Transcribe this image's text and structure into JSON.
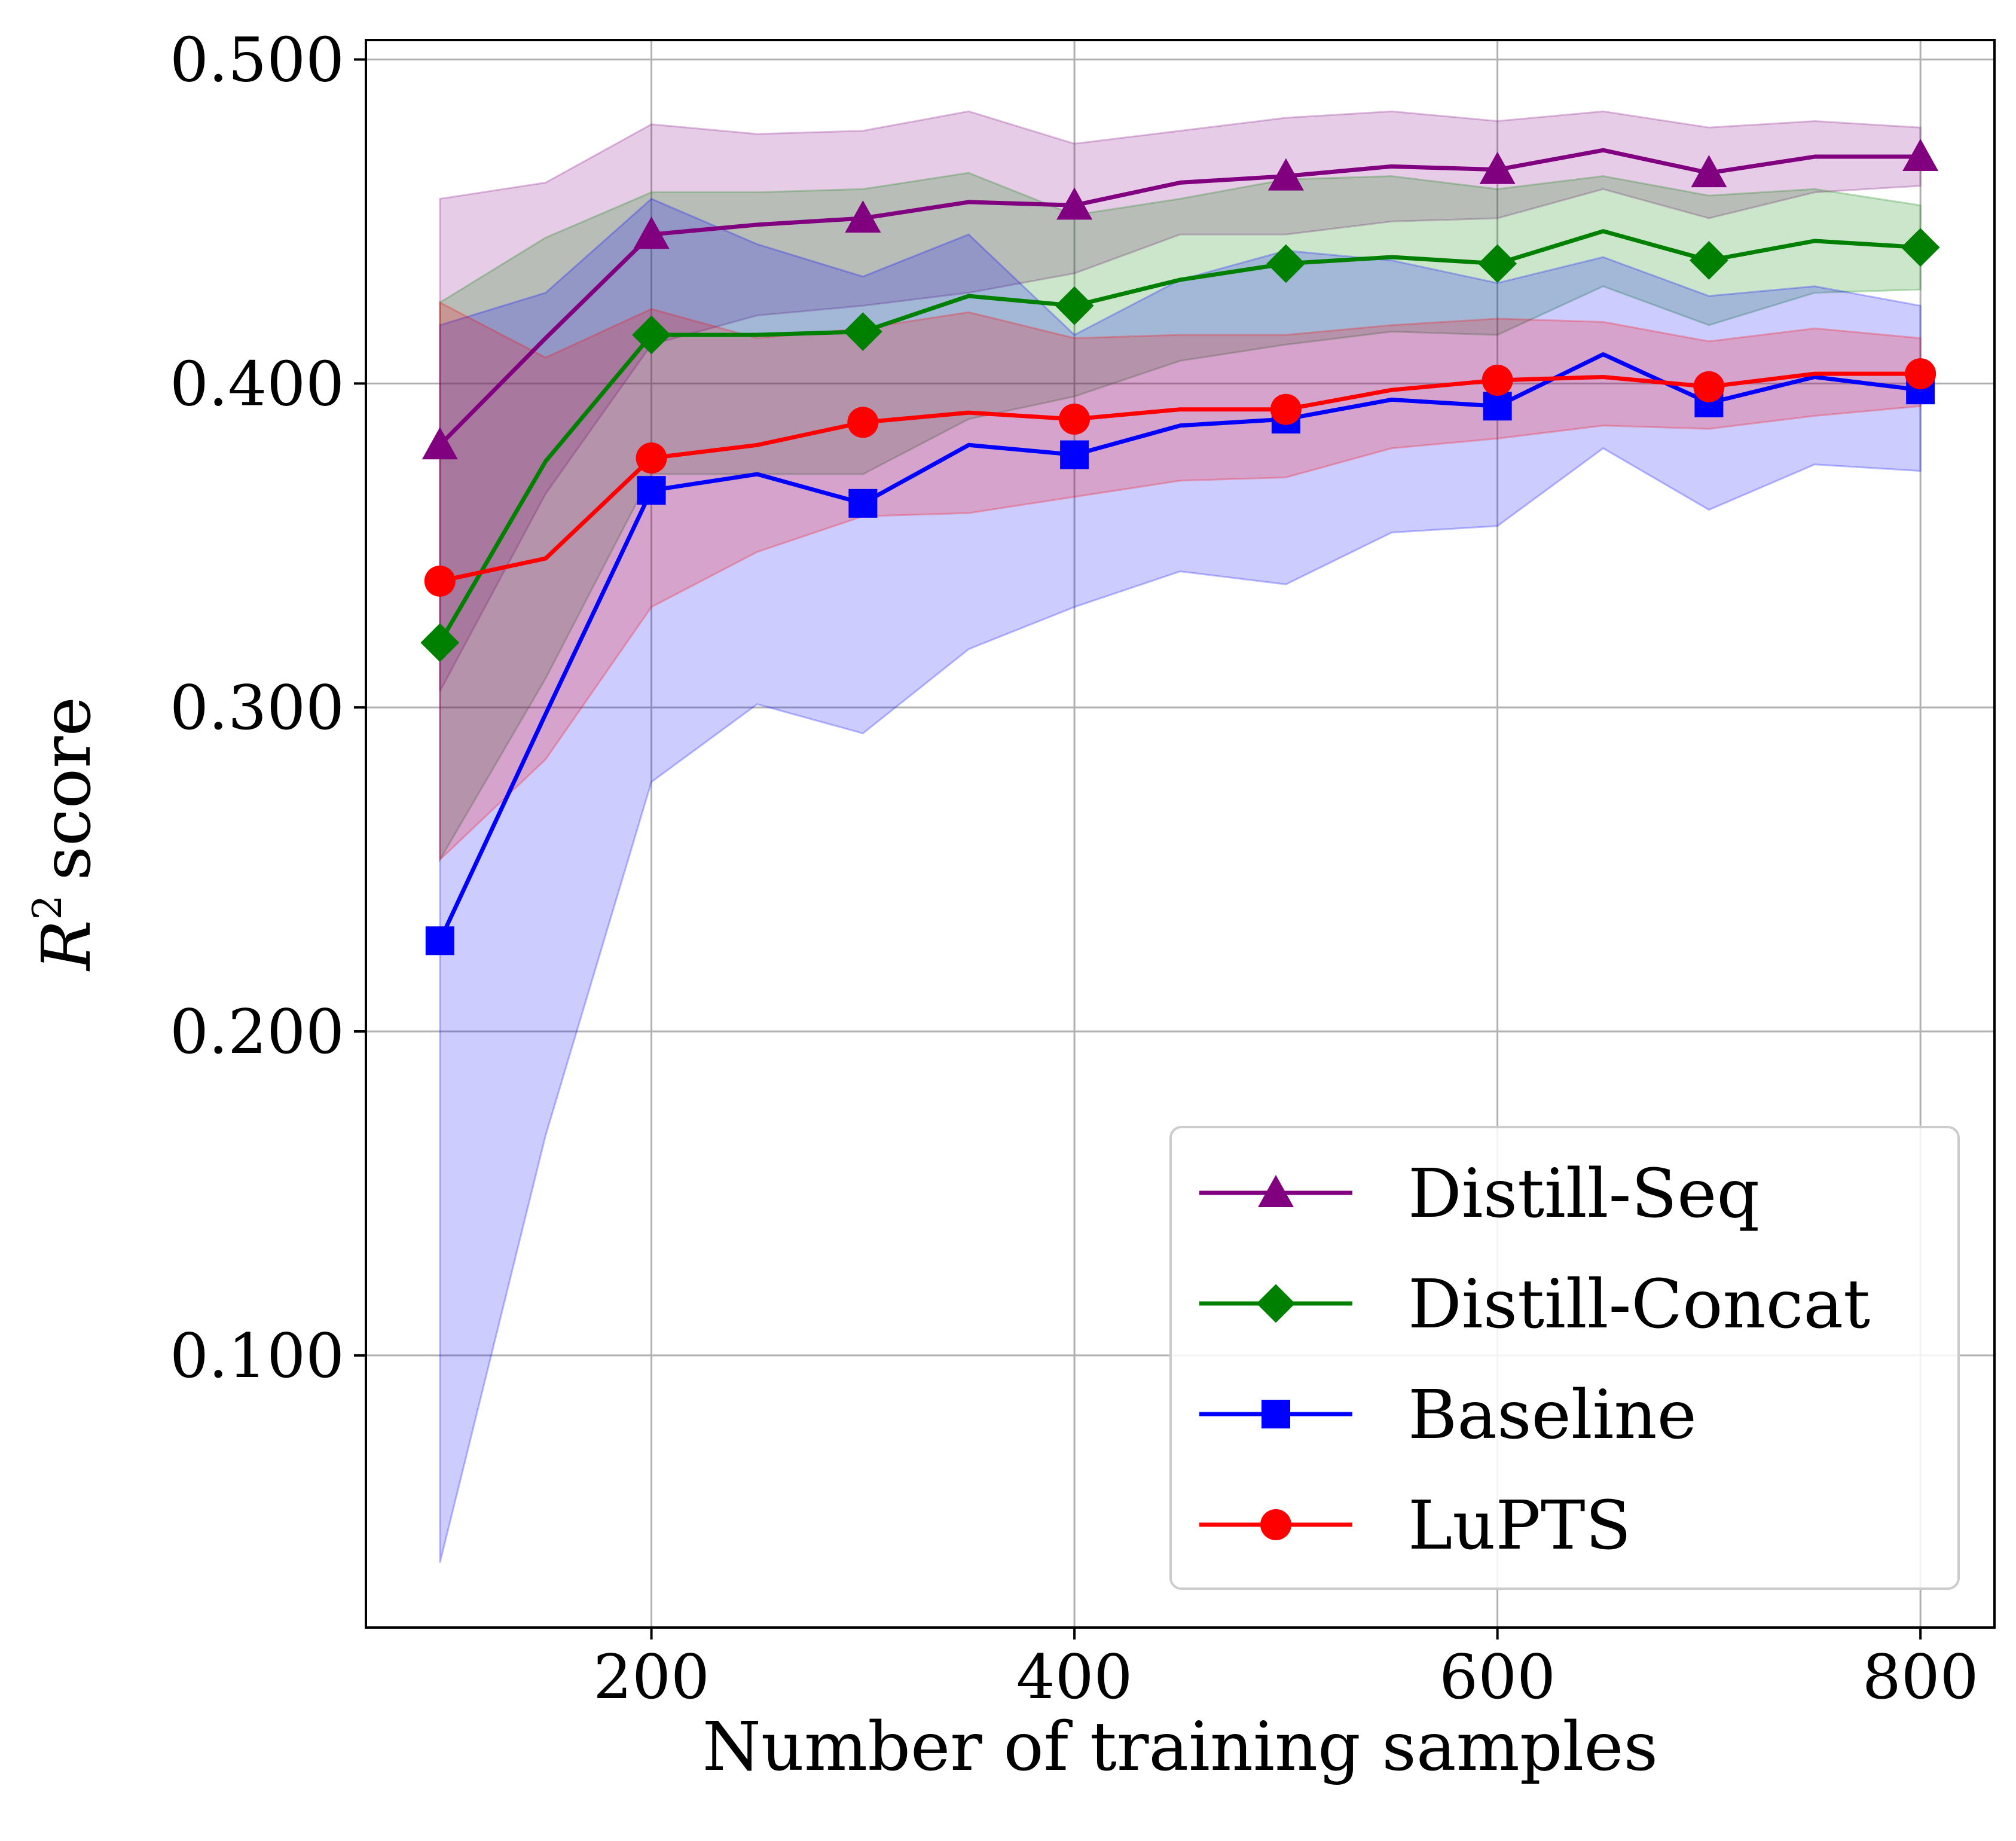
{
  "chart_data": {
    "type": "line",
    "title": "",
    "xlabel": "Number of training samples",
    "ylabel": "score",
    "ylabel_symbol": "R",
    "ylabel_exponent": "2",
    "x": [
      100,
      150,
      200,
      250,
      300,
      350,
      400,
      450,
      500,
      550,
      600,
      650,
      700,
      750,
      800
    ],
    "xlim": [
      65,
      835
    ],
    "ylim": [
      0.016,
      0.506
    ],
    "xticks": [
      200,
      400,
      600,
      800
    ],
    "xtick_labels": [
      "200",
      "400",
      "600",
      "800"
    ],
    "yticks": [
      0.1,
      0.2,
      0.3,
      0.4,
      0.5
    ],
    "ytick_labels": [
      "0.100",
      "0.200",
      "0.300",
      "0.400",
      "0.500"
    ],
    "grid": true,
    "legend_position": "bottom-right",
    "series": [
      {
        "name": "Distill-Seq",
        "color": "#800080",
        "marker": "triangle",
        "marker_every": 2,
        "values": [
          0.381,
          0.414,
          0.446,
          0.449,
          0.451,
          0.456,
          0.455,
          0.462,
          0.464,
          0.467,
          0.466,
          0.472,
          0.465,
          0.47,
          0.47
        ],
        "upper": [
          0.457,
          0.462,
          0.48,
          0.477,
          0.478,
          0.484,
          0.474,
          0.478,
          0.482,
          0.484,
          0.481,
          0.484,
          0.479,
          0.481,
          0.479
        ],
        "lower": [
          0.305,
          0.366,
          0.412,
          0.421,
          0.424,
          0.428,
          0.434,
          0.446,
          0.446,
          0.45,
          0.451,
          0.46,
          0.451,
          0.459,
          0.461
        ]
      },
      {
        "name": "Distill-Concat",
        "color": "#008000",
        "marker": "diamond",
        "marker_every": 2,
        "values": [
          0.32,
          0.376,
          0.415,
          0.415,
          0.416,
          0.427,
          0.424,
          0.432,
          0.437,
          0.439,
          0.437,
          0.447,
          0.438,
          0.444,
          0.442
        ],
        "upper": [
          0.425,
          0.445,
          0.459,
          0.459,
          0.46,
          0.465,
          0.452,
          0.457,
          0.463,
          0.464,
          0.46,
          0.464,
          0.458,
          0.46,
          0.455
        ],
        "lower": [
          0.253,
          0.309,
          0.372,
          0.372,
          0.372,
          0.389,
          0.396,
          0.407,
          0.412,
          0.416,
          0.415,
          0.43,
          0.418,
          0.428,
          0.429
        ]
      },
      {
        "name": "Baseline",
        "color": "#0000ff",
        "marker": "square",
        "marker_every": 2,
        "values": [
          0.228,
          0.298,
          0.367,
          0.372,
          0.363,
          0.381,
          0.378,
          0.387,
          0.389,
          0.395,
          0.393,
          0.409,
          0.394,
          0.402,
          0.398
        ],
        "upper": [
          0.418,
          0.428,
          0.457,
          0.443,
          0.433,
          0.446,
          0.415,
          0.432,
          0.441,
          0.438,
          0.431,
          0.439,
          0.427,
          0.43,
          0.424
        ],
        "lower": [
          0.036,
          0.168,
          0.277,
          0.301,
          0.292,
          0.318,
          0.331,
          0.342,
          0.338,
          0.354,
          0.356,
          0.38,
          0.361,
          0.375,
          0.373
        ]
      },
      {
        "name": "LuPTS",
        "color": "#ff0000",
        "marker": "circle",
        "marker_every": 2,
        "values": [
          0.339,
          0.346,
          0.377,
          0.381,
          0.388,
          0.391,
          0.389,
          0.392,
          0.392,
          0.398,
          0.401,
          0.402,
          0.399,
          0.403,
          0.403
        ],
        "upper": [
          0.425,
          0.408,
          0.423,
          0.414,
          0.417,
          0.422,
          0.414,
          0.415,
          0.415,
          0.418,
          0.42,
          0.419,
          0.413,
          0.417,
          0.414
        ],
        "lower": [
          0.253,
          0.284,
          0.331,
          0.348,
          0.359,
          0.36,
          0.365,
          0.37,
          0.371,
          0.38,
          0.383,
          0.387,
          0.386,
          0.39,
          0.393
        ]
      }
    ]
  }
}
